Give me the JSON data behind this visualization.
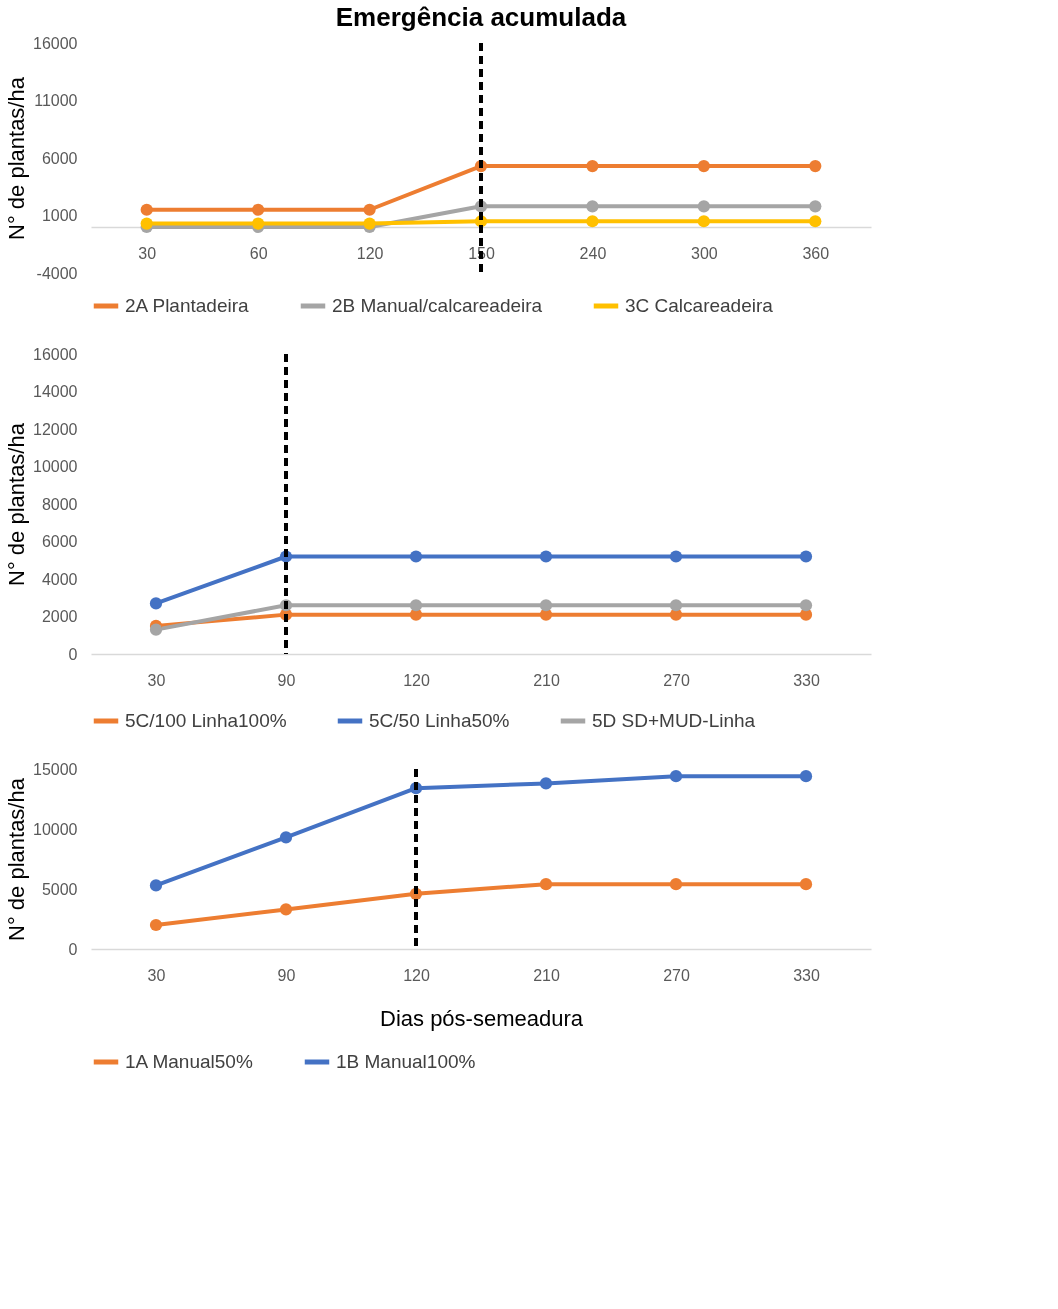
{
  "chart_data": [
    {
      "type": "line",
      "title": "Emergência acumulada",
      "ylabel": "N° de plantas/ha",
      "categories": [
        "30",
        "60",
        "120",
        "150",
        "240",
        "300",
        "360"
      ],
      "ylim": [
        -4000,
        16000
      ],
      "yticks": [
        -4000,
        1000,
        6000,
        11000,
        16000
      ],
      "grid": false,
      "legend": "bottom",
      "marker": "circle",
      "line_style": "solid",
      "series": [
        {
          "name": "2A Plantadeira",
          "color": "#ed7d31",
          "values": [
            1500,
            1500,
            1500,
            5300,
            5300,
            5300,
            5300
          ]
        },
        {
          "name": "2B Manual/calcareadeira",
          "color": "#a5a5a5",
          "values": [
            0,
            0,
            0,
            1800,
            1800,
            1800,
            1800
          ]
        },
        {
          "name": "3C Calcareadeira",
          "color": "#ffc000",
          "values": [
            300,
            300,
            300,
            500,
            500,
            500,
            500
          ]
        }
      ],
      "ref_lines": [
        {
          "axis": "x",
          "value": "150",
          "color": "#000000",
          "line_style": "dashed"
        }
      ]
    },
    {
      "type": "line",
      "ylabel": "N° de plantas/ha",
      "categories": [
        "30",
        "90",
        "120",
        "210",
        "270",
        "330"
      ],
      "ylim": [
        0,
        16000
      ],
      "yticks": [
        0,
        2000,
        4000,
        6000,
        8000,
        10000,
        12000,
        14000,
        16000
      ],
      "grid": false,
      "legend": "bottom",
      "marker": "circle",
      "line_style": "solid",
      "series": [
        {
          "name": "5C/100 Linha100%",
          "color": "#ed7d31",
          "values": [
            1500,
            2100,
            2100,
            2100,
            2100,
            2100
          ]
        },
        {
          "name": "5C/50 Linha50%",
          "color": "#4472c4",
          "values": [
            2700,
            5200,
            5200,
            5200,
            5200,
            5200
          ]
        },
        {
          "name": "5D SD+MUD-Linha",
          "color": "#a5a5a5",
          "values": [
            1300,
            2600,
            2600,
            2600,
            2600,
            2600
          ]
        }
      ],
      "ref_lines": [
        {
          "axis": "x",
          "value": "90",
          "color": "#000000",
          "line_style": "dashed"
        }
      ]
    },
    {
      "type": "line",
      "ylabel": "N° de plantas/ha",
      "xlabel": "Dias pós-semeadura",
      "categories": [
        "30",
        "90",
        "120",
        "210",
        "270",
        "330"
      ],
      "ylim": [
        0,
        15000
      ],
      "yticks": [
        0,
        5000,
        10000,
        15000
      ],
      "grid": false,
      "legend": "bottom",
      "marker": "circle",
      "line_style": "solid",
      "series": [
        {
          "name": "1A Manual50%",
          "color": "#ed7d31",
          "values": [
            2000,
            3300,
            4600,
            5400,
            5400,
            5400
          ]
        },
        {
          "name": "1B Manual100%",
          "color": "#4472c4",
          "values": [
            5300,
            9300,
            13400,
            13800,
            14400,
            14400
          ]
        }
      ],
      "ref_lines": [
        {
          "axis": "x",
          "value": "120",
          "color": "#000000",
          "line_style": "dashed"
        }
      ]
    }
  ]
}
